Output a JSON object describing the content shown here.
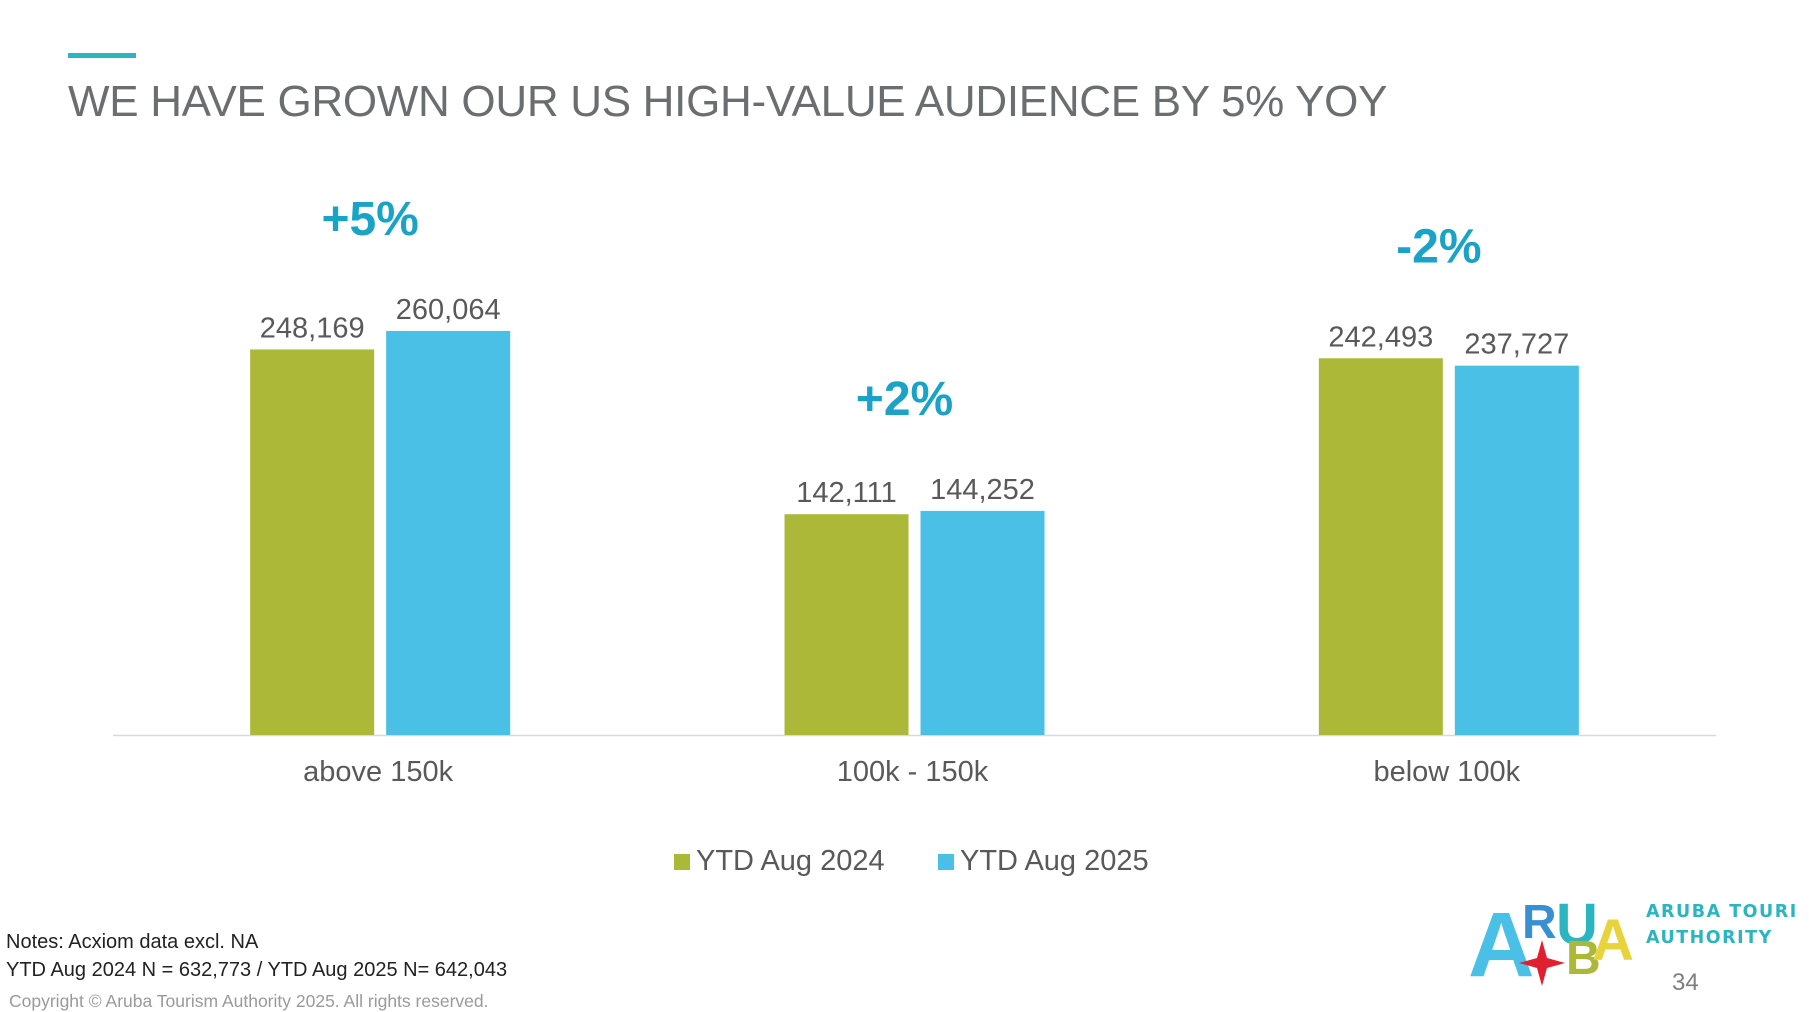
{
  "slide": {
    "title": "WE HAVE GROWN OUR US HIGH-VALUE AUDIENCE BY 5% YOY",
    "notes_line1": "Notes: Acxiom data excl. NA",
    "notes_line2": "YTD Aug 2024 N = 632,773 / YTD Aug 2025 N= 642,043",
    "copyright": "Copyright © Aruba Tourism Authority 2025. All rights reserved.",
    "page_number": "34"
  },
  "logo": {
    "wordmark_letters": [
      "A",
      "R",
      "U",
      "B",
      "A"
    ],
    "line1": "ARUBA TOURISM",
    "line2": "AUTHORITY"
  },
  "colors": {
    "series_2024": "#abb838",
    "series_2025": "#4ac0e6",
    "change_label": "#1aa3c6",
    "accent": "#2bb5c0"
  },
  "chart_data": {
    "type": "bar",
    "categories": [
      "above 150k",
      "100k - 150k",
      "below 100k"
    ],
    "series": [
      {
        "name": "YTD Aug 2024",
        "values": [
          248169,
          142111,
          242493
        ],
        "labels": [
          "248,169",
          "142,111",
          "242,493"
        ]
      },
      {
        "name": "YTD Aug 2025",
        "values": [
          260064,
          144252,
          237727
        ],
        "labels": [
          "260,064",
          "144,252",
          "237,727"
        ]
      }
    ],
    "change_labels": [
      "+5%",
      "+2%",
      "-2%"
    ],
    "ylim": [
      0,
      280000
    ],
    "legend_position": "bottom",
    "grid": false
  }
}
